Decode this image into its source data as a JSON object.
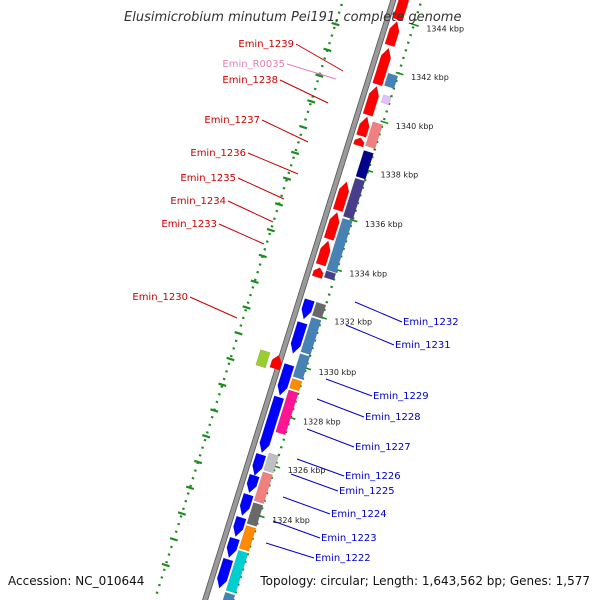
{
  "title": "Elusimicrobium minutum Pei191, complete genome",
  "footer": {
    "accession": "Accession: NC_010644",
    "summary": "Topology: circular; Length: 1,643,562 bp; Genes: 1,577"
  },
  "colors": {
    "forward_label": "#cc0000",
    "rna_label": "#e37fb8",
    "reverse_label": "#0000cc",
    "ruler": "#1e8b1e",
    "backbone": "#888888"
  },
  "ticks": [
    "1344 kbp",
    "1342 kbp",
    "1340 kbp",
    "1338 kbp",
    "1336 kbp",
    "1334 kbp",
    "1332 kbp",
    "1330 kbp",
    "1328 kbp",
    "1326 kbp",
    "1324 kbp"
  ],
  "left_labels": [
    {
      "text": "Emin_1239",
      "strand": "forward"
    },
    {
      "text": "Emin_R0035",
      "strand": "rna"
    },
    {
      "text": "Emin_1238",
      "strand": "forward"
    },
    {
      "text": "Emin_1237",
      "strand": "forward"
    },
    {
      "text": "Emin_1236",
      "strand": "forward"
    },
    {
      "text": "Emin_1235",
      "strand": "forward"
    },
    {
      "text": "Emin_1234",
      "strand": "forward"
    },
    {
      "text": "Emin_1233",
      "strand": "forward"
    },
    {
      "text": "Emin_1230",
      "strand": "forward"
    }
  ],
  "right_labels": [
    {
      "text": "Emin_1232",
      "strand": "reverse"
    },
    {
      "text": "Emin_1231",
      "strand": "reverse"
    },
    {
      "text": "Emin_1229",
      "strand": "reverse"
    },
    {
      "text": "Emin_1228",
      "strand": "reverse"
    },
    {
      "text": "Emin_1227",
      "strand": "reverse"
    },
    {
      "text": "Emin_1226",
      "strand": "reverse"
    },
    {
      "text": "Emin_1225",
      "strand": "reverse"
    },
    {
      "text": "Emin_1224",
      "strand": "reverse"
    },
    {
      "text": "Emin_1223",
      "strand": "reverse"
    },
    {
      "text": "Emin_1222",
      "strand": "reverse"
    }
  ]
}
